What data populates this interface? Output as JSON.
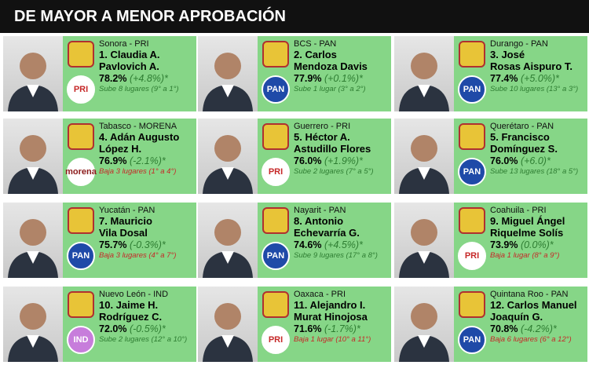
{
  "header": {
    "title": "DE MAYOR A MENOR APROBACIÓN"
  },
  "cards": [
    {
      "state_party": "Sonora - PRI",
      "name_lines": [
        "1. Claudia A.",
        "Pavlovich A."
      ],
      "approval": "78.2%",
      "change": "(+4.8%)*",
      "movement": "Sube 8 lugares (9° a 1°)",
      "movement_color": "#2e7d32",
      "badge": "PRI",
      "badge_bg": "#ffffff",
      "badge_fg": "#c62828"
    },
    {
      "state_party": "BCS - PAN",
      "name_lines": [
        "2. Carlos",
        "Mendoza Davis"
      ],
      "approval": "77.9%",
      "change": "(+0.1%)*",
      "movement": "Sube 1 lugar (3° a 2°)",
      "movement_color": "#2e7d32",
      "badge": "PAN",
      "badge_bg": "#1f4aa8",
      "badge_fg": "#ffffff"
    },
    {
      "state_party": "Durango - PAN",
      "name_lines": [
        "3. José",
        "Rosas Aispuro T."
      ],
      "approval": "77.4%",
      "change": "(+5.0%)*",
      "movement": "Sube 10 lugares (13° a 3°)",
      "movement_color": "#2e7d32",
      "badge": "PAN",
      "badge_bg": "#1f4aa8",
      "badge_fg": "#ffffff"
    },
    {
      "state_party": "Tabasco - MORENA",
      "name_lines": [
        "4. Adán Augusto",
        "López H."
      ],
      "approval": "76.9%",
      "change": "(-2.1%)*",
      "movement": "Baja 3 lugares (1° a 4°)",
      "movement_color": "#c62828",
      "badge": "morena",
      "badge_bg": "#ffffff",
      "badge_fg": "#8b1a1a"
    },
    {
      "state_party": "Guerrero - PRI",
      "name_lines": [
        "5. Héctor A.",
        "Astudillo Flores"
      ],
      "approval": "76.0%",
      "change": "(+1.9%)*",
      "movement": "Sube 2 lugares (7° a 5°)",
      "movement_color": "#2e7d32",
      "badge": "PRI",
      "badge_bg": "#ffffff",
      "badge_fg": "#c62828"
    },
    {
      "state_party": "Querétaro - PAN",
      "name_lines": [
        "5. Francisco",
        "Domínguez S."
      ],
      "approval": "76.0%",
      "change": "(+6.0)*",
      "movement": "Sube 13 lugares (18° a 5°)",
      "movement_color": "#2e7d32",
      "badge": "PAN",
      "badge_bg": "#1f4aa8",
      "badge_fg": "#ffffff"
    },
    {
      "state_party": "Yucatán - PAN",
      "name_lines": [
        "7. Mauricio",
        "Vila Dosal"
      ],
      "approval": "75.7%",
      "change": "(-0.3%)*",
      "movement": "Baja 3 lugares (4° a 7°)",
      "movement_color": "#c62828",
      "badge": "PAN",
      "badge_bg": "#1f4aa8",
      "badge_fg": "#ffffff"
    },
    {
      "state_party": "Nayarit - PAN",
      "name_lines": [
        "8. Antonio",
        "Echevarría G."
      ],
      "approval": "74.6%",
      "change": "(+4.5%)*",
      "movement": "Sube 9 lugares (17° a 8°)",
      "movement_color": "#2e7d32",
      "badge": "PAN",
      "badge_bg": "#1f4aa8",
      "badge_fg": "#ffffff"
    },
    {
      "state_party": "Coahuila - PRI",
      "name_lines": [
        "9. Miguel Ángel",
        "Riquelme Solís"
      ],
      "approval": "73.9%",
      "change": "(0.0%)*",
      "movement": "Baja 1 lugar (8° a 9°)",
      "movement_color": "#c62828",
      "badge": "PRI",
      "badge_bg": "#ffffff",
      "badge_fg": "#c62828"
    },
    {
      "state_party": "Nuevo León - IND",
      "name_lines": [
        "10. Jaime H.",
        "Rodríguez C."
      ],
      "approval": "72.0%",
      "change": "(-0.5%)*",
      "movement": "Sube 2 lugares (12° a 10°)",
      "movement_color": "#2e7d32",
      "badge": "IND",
      "badge_bg": "#c77ddb",
      "badge_fg": "#ffffff"
    },
    {
      "state_party": "Oaxaca - PRI",
      "name_lines": [
        "11. Alejandro I.",
        "Murat Hinojosa"
      ],
      "approval": "71.6%",
      "change": "(-1.7%)*",
      "movement": "Baja 1 lugar (10° a 11°)",
      "movement_color": "#c62828",
      "badge": "PRI",
      "badge_bg": "#ffffff",
      "badge_fg": "#c62828"
    },
    {
      "state_party": "Quintana Roo - PAN",
      "name_lines": [
        "12. Carlos Manuel",
        "Joaquín G."
      ],
      "approval": "70.8%",
      "change": "(-4.2%)*",
      "movement": "Baja 6 lugares (6° a 12°)",
      "movement_color": "#c62828",
      "badge": "PAN",
      "badge_bg": "#1f4aa8",
      "badge_fg": "#ffffff"
    }
  ]
}
